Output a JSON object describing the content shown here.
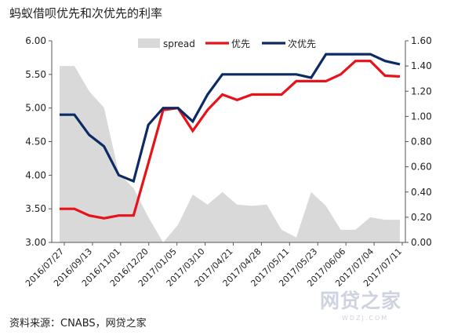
{
  "title": "蚂蚁借呗优先和次优先的利率",
  "source": "资料来源：CNABS，网贷之家",
  "watermark": "网贷之家",
  "watermark_sub": "WDZJ.COM",
  "colors": {
    "spread": "#d9d9d9",
    "senior": "#e8121a",
    "subordinate": "#0c2a63"
  },
  "chart_data": {
    "type": "line",
    "title": "蚂蚁借呗优先和次优先的利率",
    "x_tick_labels": [
      "2016/07/27",
      "2016/09/13",
      "2016/11/01",
      "2016/12/20",
      "2017/01/05",
      "2017/03/10",
      "2017/04/21",
      "2017/04/28",
      "2017/05/11",
      "2017/05/23",
      "2017/06/06",
      "2017/07/04",
      "2017/07/11"
    ],
    "y_left": {
      "ylim": [
        3.0,
        6.0
      ],
      "ticks": [
        "3.00",
        "3.50",
        "4.00",
        "4.50",
        "5.00",
        "5.50",
        "6.00"
      ]
    },
    "y_right": {
      "ylim": [
        0.0,
        1.6
      ],
      "ticks": [
        "0.00",
        "0.20",
        "0.40",
        "0.60",
        "0.80",
        "1.00",
        "1.20",
        "1.40",
        "1.60"
      ]
    },
    "legend": {
      "position": "top",
      "labels": [
        "spread",
        "优先",
        "次优先"
      ]
    },
    "series": [
      {
        "name": "spread",
        "type": "area",
        "axis": "right",
        "values": [
          1.4,
          1.4,
          1.2,
          1.07,
          0.55,
          0.43,
          0.2,
          0.0,
          0.14,
          0.38,
          0.3,
          0.4,
          0.3,
          0.29,
          0.3,
          0.1,
          0.04,
          0.4,
          0.29,
          0.1,
          0.1,
          0.2,
          0.18,
          0.18
        ]
      },
      {
        "name": "优先",
        "type": "line",
        "axis": "left",
        "values": [
          3.5,
          3.5,
          3.4,
          3.36,
          3.4,
          3.4,
          4.18,
          4.97,
          5.0,
          4.66,
          4.97,
          5.2,
          5.12,
          5.2,
          5.2,
          5.2,
          5.4,
          5.4,
          5.4,
          5.5,
          5.7,
          5.7,
          5.48,
          5.47
        ]
      },
      {
        "name": "次优先",
        "type": "line",
        "axis": "left",
        "values": [
          4.9,
          4.9,
          4.6,
          4.43,
          4.0,
          3.91,
          4.75,
          5.0,
          5.0,
          4.8,
          5.2,
          5.5,
          5.5,
          5.5,
          5.5,
          5.5,
          5.5,
          5.45,
          5.8,
          5.8,
          5.8,
          5.8,
          5.7,
          5.65
        ]
      }
    ]
  }
}
